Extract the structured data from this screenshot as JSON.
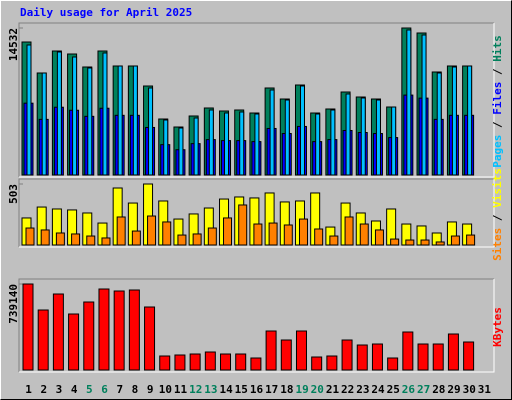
{
  "legend_separator": " / ",
  "chart_data": [
    {
      "type": "bar",
      "title": "Daily usage for April 2025",
      "categories": [
        "1",
        "2",
        "3",
        "4",
        "5",
        "6",
        "7",
        "8",
        "9",
        "10",
        "11",
        "12",
        "13",
        "14",
        "15",
        "16",
        "17",
        "18",
        "19",
        "20",
        "21",
        "22",
        "23",
        "24",
        "25",
        "26",
        "27",
        "28",
        "29",
        "30",
        "31"
      ],
      "category_colors": [
        "#000000",
        "#000000",
        "#000000",
        "#000000",
        "#00805c",
        "#00805c",
        "#000000",
        "#000000",
        "#000000",
        "#000000",
        "#000000",
        "#00805c",
        "#00805c",
        "#000000",
        "#000000",
        "#000000",
        "#000000",
        "#000000",
        "#00805c",
        "#00805c",
        "#000000",
        "#000000",
        "#000000",
        "#000000",
        "#000000",
        "#00805c",
        "#00805c",
        "#000000",
        "#000000",
        "#000000",
        "#000000"
      ],
      "ylim": [
        0,
        14532
      ],
      "yticks": [
        14532
      ],
      "series": [
        {
          "name": "Pages",
          "color": "#00c0ff",
          "values": [
            12852,
            10084,
            12160,
            11665,
            10578,
            12061,
            10776,
            10776,
            8601,
            5437,
            4646,
            5635,
            6426,
            6129,
            6228,
            6030,
            8403,
            7414,
            8798,
            6030,
            6426,
            8008,
            7612,
            7414,
            6722,
            14335,
            13840,
            10084,
            10677,
            10776,
            null
          ]
        },
        {
          "name": "Files",
          "color": "#0000ff",
          "values": [
            7100,
            5500,
            6700,
            6400,
            5800,
            6600,
            5900,
            5900,
            4700,
            3000,
            2500,
            3100,
            3500,
            3400,
            3400,
            3300,
            4600,
            4100,
            4800,
            3300,
            3500,
            4400,
            4200,
            4100,
            3700,
            7900,
            7600,
            5500,
            5900,
            5900,
            null
          ]
        },
        {
          "name": "Hits",
          "color": "#00805c",
          "values": [
            13148,
            10084,
            12258,
            11962,
            10677,
            12258,
            10776,
            10776,
            8798,
            5536,
            4745,
            5833,
            6624,
            6327,
            6426,
            6129,
            8601,
            7513,
            8897,
            6129,
            6525,
            8205,
            7711,
            7513,
            6722,
            14532,
            14038,
            10183,
            10776,
            10776,
            null
          ]
        }
      ]
    },
    {
      "type": "bar",
      "ylim": [
        0,
        503
      ],
      "yticks": [
        503
      ],
      "series": [
        {
          "name": "Sites",
          "color": "#ff8000",
          "values": [
            140,
            124,
            99,
            91,
            74,
            58,
            231,
            115,
            239,
            190,
            82,
            91,
            140,
            223,
            330,
            173,
            181,
            165,
            214,
            132,
            74,
            231,
            173,
            124,
            49,
            41,
            41,
            25,
            74,
            82,
            null
          ]
        },
        {
          "name": "Visits",
          "color": "#ffff00",
          "values": [
            223,
            313,
            297,
            289,
            264,
            181,
            470,
            346,
            503,
            363,
            214,
            256,
            305,
            379,
            396,
            388,
            429,
            355,
            363,
            429,
            148,
            346,
            264,
            198,
            297,
            173,
            157,
            99,
            190,
            173,
            null
          ]
        }
      ]
    },
    {
      "type": "bar",
      "ylim": [
        0,
        739140
      ],
      "yticks": [
        739140
      ],
      "series": [
        {
          "name": "KBytes",
          "color": "#ff0000",
          "values": [
            739140,
            515682,
            653197,
            481303,
            584440,
            696166,
            678977,
            687572,
            541466,
            120326,
            128920,
            137515,
            154705,
            137515,
            137515,
            103136,
            335193,
            257841,
            335193,
            111731,
            120326,
            257841,
            214868,
            223462,
            103136,
            326599,
            223462,
            223462,
            309409,
            240652,
            null
          ]
        }
      ]
    }
  ]
}
